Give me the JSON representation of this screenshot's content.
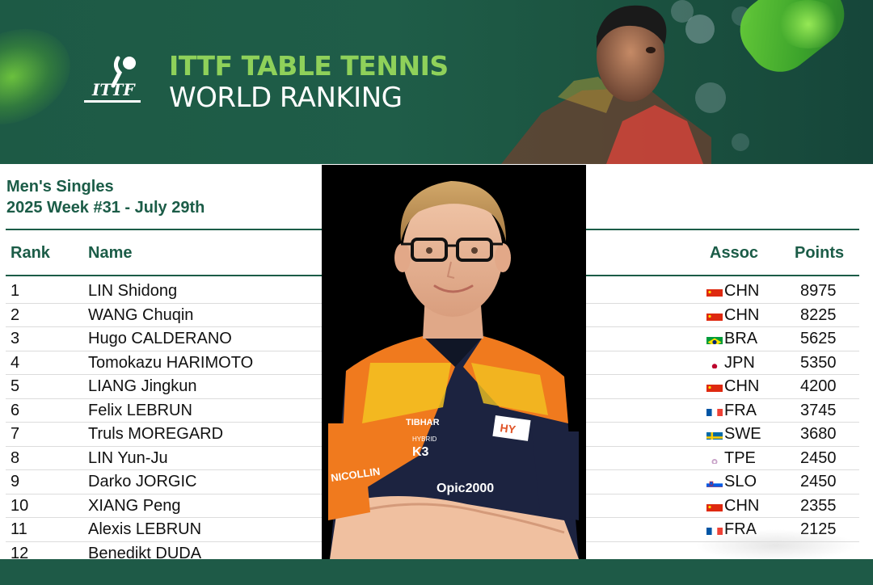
{
  "banner": {
    "logo_text": "ITTF",
    "title_line1": "ITTF TABLE TENNIS",
    "title_line2": "WORLD RANKING"
  },
  "subtitle": {
    "category": "Men's Singles",
    "week": "2025 Week #31 - July 29th"
  },
  "table": {
    "headers": {
      "rank": "Rank",
      "name": "Name",
      "assoc": "Assoc",
      "points": "Points"
    },
    "rows": [
      {
        "rank": "1",
        "name": "LIN Shidong",
        "assoc": "CHN",
        "points": "8975",
        "flag": "chn"
      },
      {
        "rank": "2",
        "name": "WANG Chuqin",
        "assoc": "CHN",
        "points": "8225",
        "flag": "chn"
      },
      {
        "rank": "3",
        "name": "Hugo CALDERANO",
        "assoc": "BRA",
        "points": "5625",
        "flag": "bra"
      },
      {
        "rank": "4",
        "name": "Tomokazu HARIMOTO",
        "assoc": "JPN",
        "points": "5350",
        "flag": "jpn"
      },
      {
        "rank": "5",
        "name": "LIANG Jingkun",
        "assoc": "CHN",
        "points": "4200",
        "flag": "chn"
      },
      {
        "rank": "6",
        "name": "Felix LEBRUN",
        "assoc": "FRA",
        "points": "3745",
        "flag": "fra"
      },
      {
        "rank": "7",
        "name": "Truls MOREGARD",
        "assoc": "SWE",
        "points": "3680",
        "flag": "swe"
      },
      {
        "rank": "8",
        "name": "LIN Yun-Ju",
        "assoc": "TPE",
        "points": "2450",
        "flag": "tpe"
      },
      {
        "rank": "9",
        "name": "Darko JORGIC",
        "assoc": "SLO",
        "points": "2450",
        "flag": "slo"
      },
      {
        "rank": "10",
        "name": "XIANG Peng",
        "assoc": "CHN",
        "points": "2355",
        "flag": "chn"
      },
      {
        "rank": "11",
        "name": "Alexis LEBRUN",
        "assoc": "FRA",
        "points": "2125",
        "flag": "fra"
      },
      {
        "rank": "12",
        "name": "Benedikt DUDA",
        "assoc": "",
        "points": "",
        "flag": ""
      }
    ]
  },
  "photo": {
    "shirt_texts": [
      "TIBHAR",
      "HYBRID",
      "K3",
      "NICOLLIN",
      "Opic2000",
      "HY"
    ]
  },
  "colors": {
    "brand_green": "#1b5c47",
    "banner_accent": "#8fd15a",
    "shirt_orange": "#f07a1e",
    "shirt_navy": "#1c2340"
  }
}
